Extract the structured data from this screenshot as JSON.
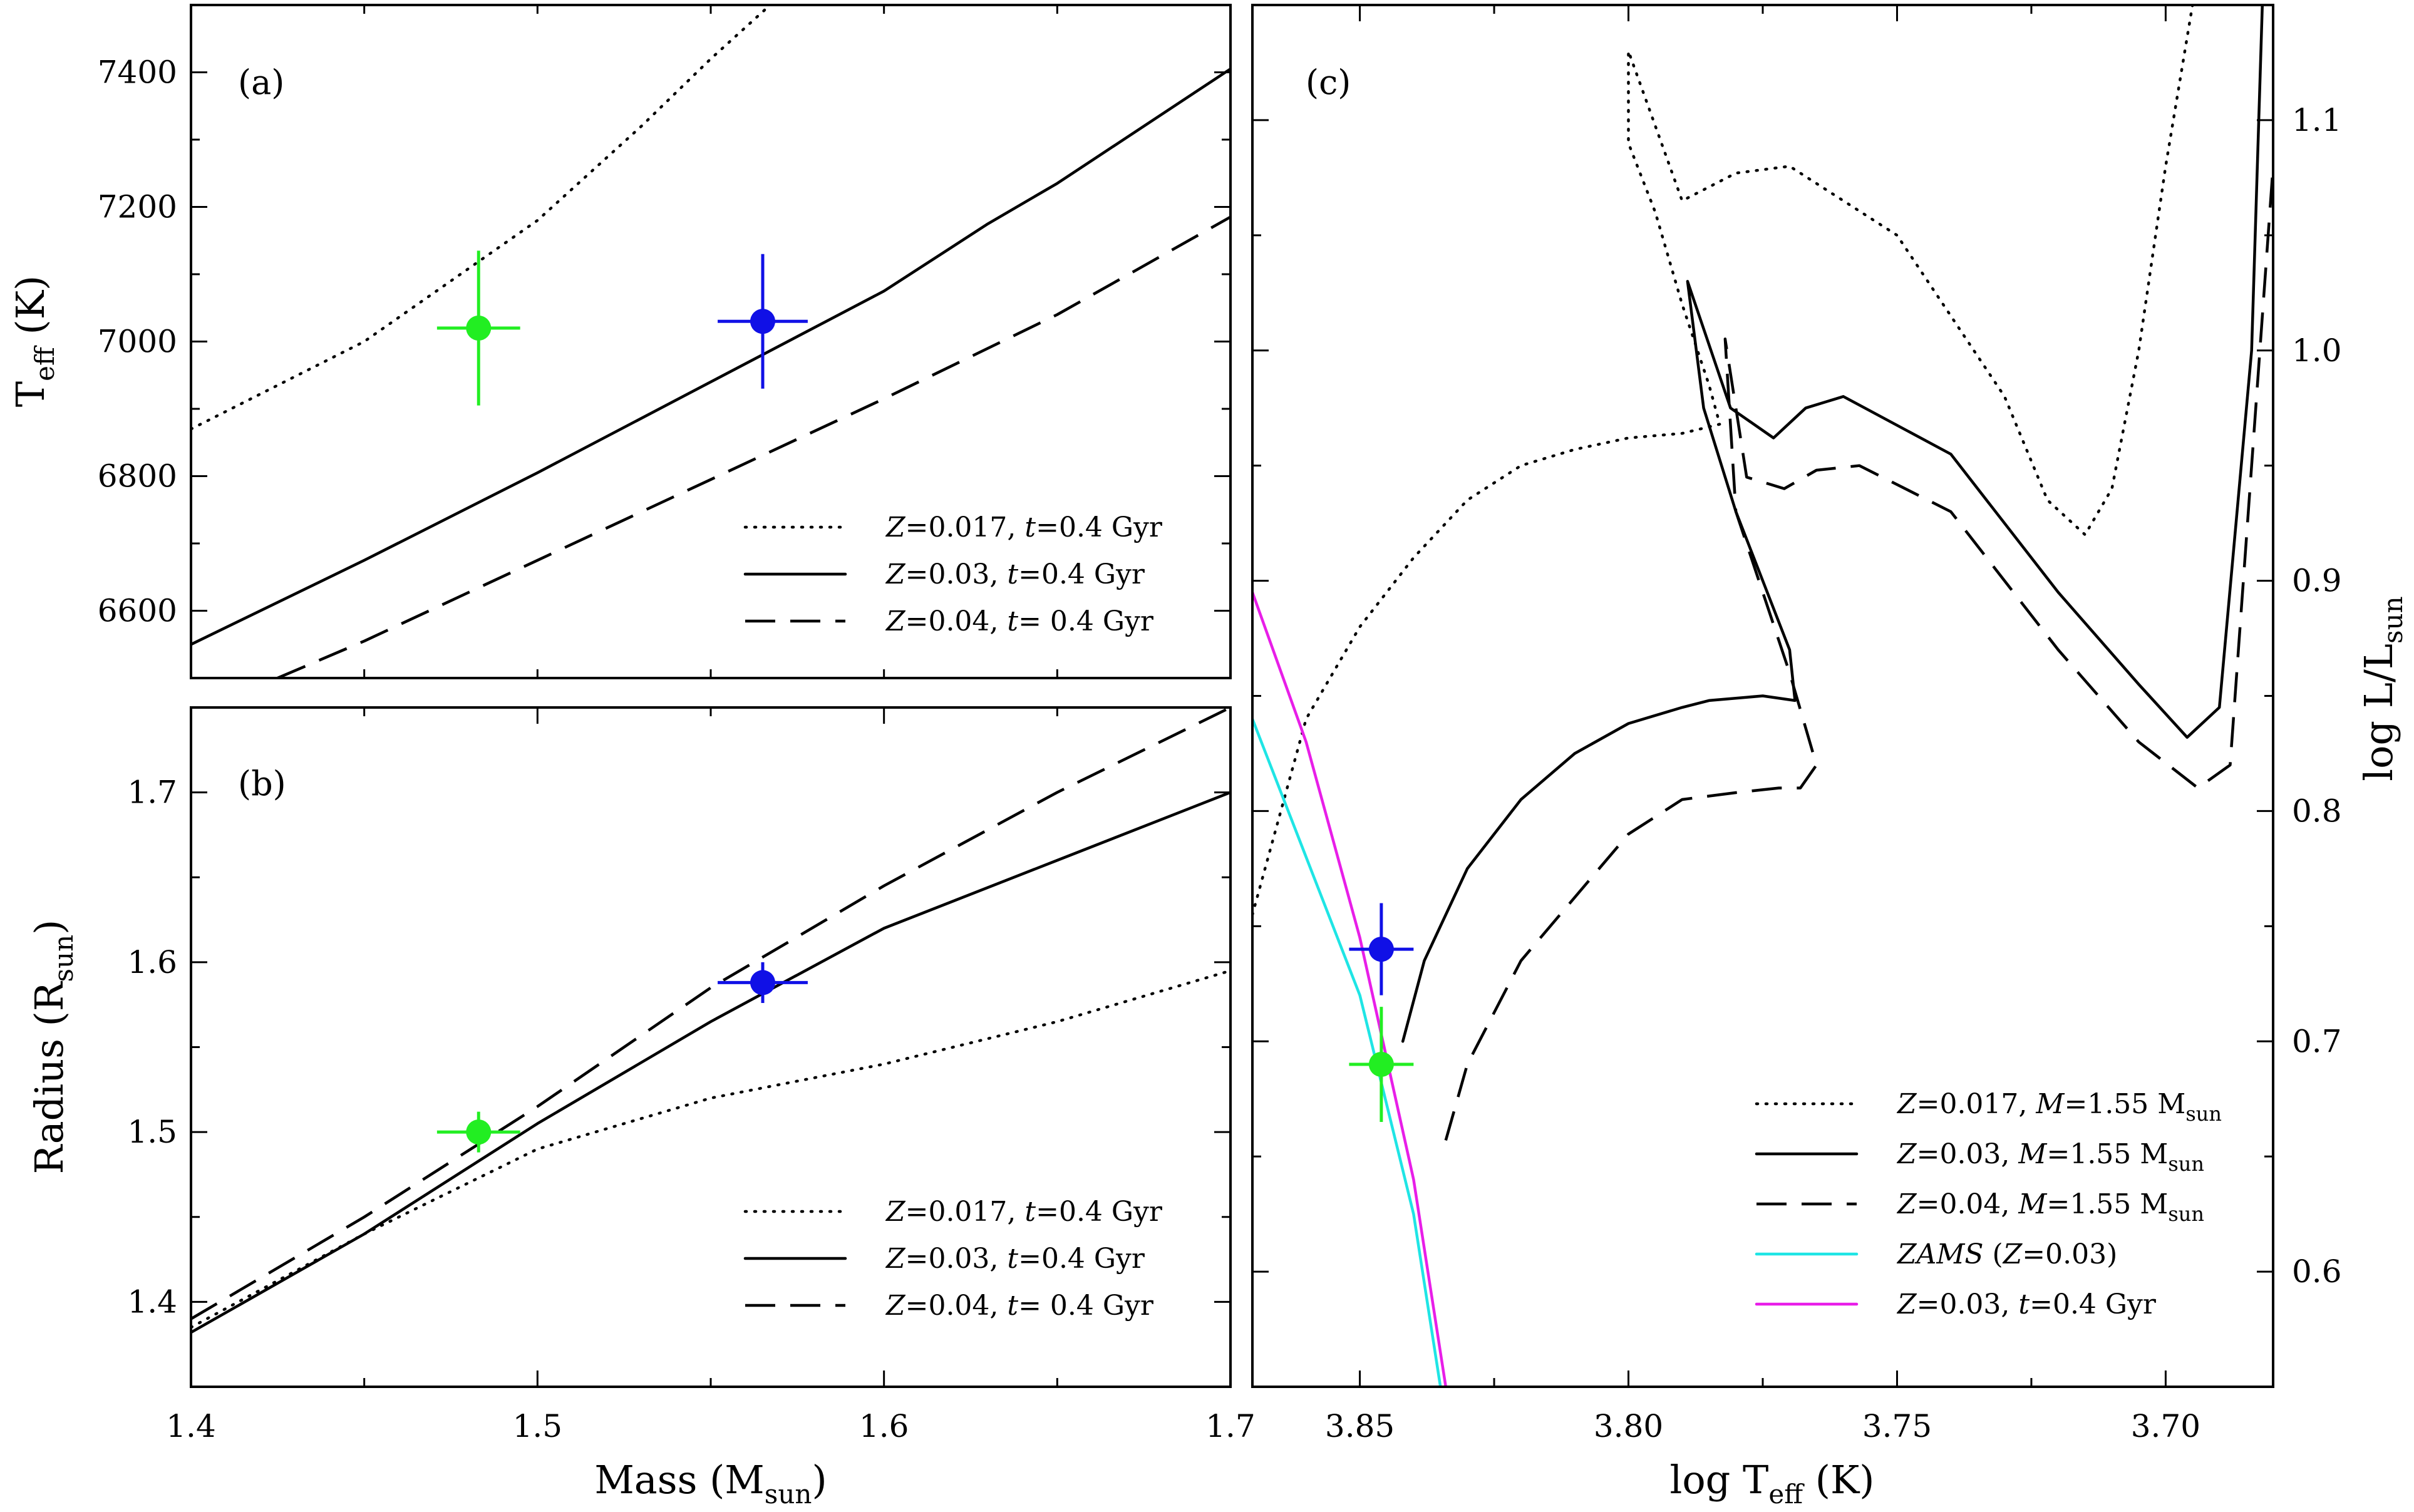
{
  "chart_data": [
    {
      "id": "a",
      "type": "line",
      "panel_label": "(a)",
      "ylabel": "T",
      "ylabel_sub": "eff",
      "ylabel_tail": " (K)",
      "xlim": [
        1.4,
        1.7
      ],
      "ylim": [
        6500,
        7500
      ],
      "yticks": [
        6600,
        6800,
        7000,
        7200,
        7400
      ],
      "yticklabels": [
        "6600",
        "6800",
        "7000",
        "7200",
        "7400"
      ],
      "series": [
        {
          "name": "Z=0.017, t=0.4 Gyr",
          "legend": [
            "Z",
            "=0.017, ",
            "t",
            "=0.4 Gyr"
          ],
          "style": "dotted",
          "color": "#000000",
          "x": [
            1.4,
            1.45,
            1.5,
            1.53,
            1.55,
            1.58
          ],
          "y": [
            6870,
            7000,
            7180,
            7320,
            7420,
            7560
          ]
        },
        {
          "name": "Z=0.03, t=0.4 Gyr",
          "legend": [
            "Z",
            "=0.03, ",
            "t",
            "=0.4 Gyr"
          ],
          "style": "solid",
          "color": "#000000",
          "x": [
            1.4,
            1.45,
            1.5,
            1.55,
            1.6,
            1.63,
            1.65,
            1.7
          ],
          "y": [
            6550,
            6675,
            6805,
            6940,
            7075,
            7175,
            7235,
            7405
          ]
        },
        {
          "name": "Z=0.04, t= 0.4 Gyr",
          "legend": [
            "Z",
            "=0.04, ",
            "t",
            "= 0.4 Gyr"
          ],
          "style": "dashed",
          "color": "#000000",
          "x": [
            1.425,
            1.45,
            1.5,
            1.55,
            1.6,
            1.65,
            1.7
          ],
          "y": [
            6500,
            6555,
            6675,
            6795,
            6915,
            7040,
            7185
          ]
        }
      ],
      "points": [
        {
          "name": "star-green",
          "color": "#22ee22",
          "x": 1.483,
          "y": 7020,
          "xerr": 0.012,
          "yerr": 115
        },
        {
          "name": "star-blue",
          "color": "#1010e6",
          "x": 1.565,
          "y": 7030,
          "xerr": 0.013,
          "yerr": 100
        }
      ]
    },
    {
      "id": "b",
      "type": "line",
      "panel_label": "(b)",
      "ylabel": "Radius (R",
      "ylabel_sub": "sun",
      "ylabel_tail": ")",
      "xlabel": "Mass (M",
      "xlabel_sub": "sun",
      "xlabel_tail": ")",
      "xlim": [
        1.4,
        1.7
      ],
      "ylim": [
        1.35,
        1.75
      ],
      "xticks": [
        1.4,
        1.5,
        1.6,
        1.7
      ],
      "xticklabels": [
        "1.4",
        "1.5",
        "1.6",
        "1.7"
      ],
      "yticks": [
        1.4,
        1.5,
        1.6,
        1.7
      ],
      "yticklabels": [
        "1.4",
        "1.5",
        "1.6",
        "1.7"
      ],
      "series": [
        {
          "name": "Z=0.017, t=0.4 Gyr",
          "legend": [
            "Z",
            "=0.017, ",
            "t",
            "=0.4 Gyr"
          ],
          "style": "dotted",
          "color": "#000000",
          "x": [
            1.4,
            1.45,
            1.5,
            1.55,
            1.6,
            1.65,
            1.7
          ],
          "y": [
            1.385,
            1.44,
            1.49,
            1.52,
            1.54,
            1.565,
            1.595
          ]
        },
        {
          "name": "Z=0.03, t=0.4 Gyr",
          "legend": [
            "Z",
            "=0.03, ",
            "t",
            "=0.4 Gyr"
          ],
          "style": "solid",
          "color": "#000000",
          "x": [
            1.4,
            1.45,
            1.5,
            1.55,
            1.6,
            1.65,
            1.7
          ],
          "y": [
            1.382,
            1.44,
            1.505,
            1.565,
            1.62,
            1.66,
            1.7
          ]
        },
        {
          "name": "Z=0.04, t= 0.4 Gyr",
          "legend": [
            "Z",
            "=0.04, ",
            "t",
            "= 0.4 Gyr"
          ],
          "style": "dashed",
          "color": "#000000",
          "x": [
            1.4,
            1.45,
            1.5,
            1.55,
            1.6,
            1.65,
            1.7
          ],
          "y": [
            1.39,
            1.45,
            1.515,
            1.585,
            1.645,
            1.7,
            1.75
          ]
        }
      ],
      "points": [
        {
          "name": "star-green",
          "color": "#22ee22",
          "x": 1.483,
          "y": 1.5,
          "xerr": 0.012,
          "yerr": 0.012
        },
        {
          "name": "star-blue",
          "color": "#1010e6",
          "x": 1.565,
          "y": 1.588,
          "xerr": 0.013,
          "yerr": 0.012
        }
      ]
    },
    {
      "id": "c",
      "type": "line",
      "panel_label": "(c)",
      "xlabel": "log T",
      "xlabel_sub": "eff",
      "xlabel_tail": " (K)",
      "ylabel": "log L/L",
      "ylabel_sub": "sun",
      "xlim": [
        3.87,
        3.68
      ],
      "ylim": [
        0.55,
        1.15
      ],
      "xticks": [
        3.85,
        3.8,
        3.75,
        3.7
      ],
      "xticklabels": [
        "3.85",
        "3.80",
        "3.75",
        "3.70"
      ],
      "yticks": [
        0.6,
        0.7,
        0.8,
        0.9,
        1.0,
        1.1
      ],
      "yticklabels": [
        "0.6",
        "0.7",
        "0.8",
        "0.9",
        "1.0",
        "1.1"
      ],
      "series": [
        {
          "name": "Z=0.017, M=1.55 Msun",
          "legend": [
            "Z",
            "=0.017, ",
            "M",
            "=1.55 M",
            "sun"
          ],
          "style": "dotted",
          "color": "#000000",
          "x": [
            3.87,
            3.86,
            3.85,
            3.84,
            3.83,
            3.82,
            3.81,
            3.8,
            3.79,
            3.783,
            3.785,
            3.79,
            3.795,
            3.8,
            3.8,
            3.79,
            3.78,
            3.77,
            3.75,
            3.73,
            3.722,
            3.715,
            3.71,
            3.705,
            3.7,
            3.695
          ],
          "y": [
            0.755,
            0.84,
            0.88,
            0.91,
            0.935,
            0.95,
            0.957,
            0.962,
            0.964,
            0.968,
            0.985,
            1.02,
            1.06,
            1.09,
            1.13,
            1.065,
            1.077,
            1.08,
            1.05,
            0.98,
            0.935,
            0.92,
            0.94,
            1.0,
            1.08,
            1.15
          ]
        },
        {
          "name": "Z=0.03, M=1.55 Msun",
          "legend": [
            "Z",
            "=0.03, ",
            "M",
            "=1.55 M",
            "sun"
          ],
          "style": "solid",
          "color": "#000000",
          "x": [
            3.842,
            3.838,
            3.83,
            3.82,
            3.81,
            3.8,
            3.79,
            3.785,
            3.775,
            3.769,
            3.77,
            3.78,
            3.786,
            3.789,
            3.781,
            3.773,
            3.767,
            3.76,
            3.74,
            3.72,
            3.705,
            3.696,
            3.69,
            3.684,
            3.682
          ],
          "y": [
            0.7,
            0.735,
            0.775,
            0.805,
            0.825,
            0.838,
            0.845,
            0.848,
            0.85,
            0.848,
            0.87,
            0.93,
            0.975,
            1.03,
            0.975,
            0.962,
            0.975,
            0.98,
            0.955,
            0.895,
            0.855,
            0.832,
            0.845,
            1.0,
            1.15
          ]
        },
        {
          "name": "Z=0.04, M=1.55 Msun",
          "legend": [
            "Z",
            "=0.04, ",
            "M",
            "=1.55 M",
            "sun"
          ],
          "style": "dashed",
          "color": "#000000",
          "x": [
            3.834,
            3.83,
            3.82,
            3.8,
            3.79,
            3.78,
            3.772,
            3.768,
            3.765,
            3.77,
            3.78,
            3.782,
            3.778,
            3.771,
            3.765,
            3.757,
            3.74,
            3.72,
            3.705,
            3.694,
            3.688,
            3.684,
            3.68
          ],
          "y": [
            0.657,
            0.69,
            0.735,
            0.79,
            0.805,
            0.808,
            0.81,
            0.81,
            0.82,
            0.86,
            0.93,
            1.005,
            0.945,
            0.94,
            0.948,
            0.95,
            0.93,
            0.87,
            0.83,
            0.81,
            0.82,
            0.95,
            1.08
          ]
        },
        {
          "name": "ZAMS (Z=0.03)",
          "legend": [
            "ZAMS",
            " (",
            "Z",
            "=0.03)"
          ],
          "style": "solid",
          "color": "#1fe5e5",
          "x": [
            3.87,
            3.86,
            3.85,
            3.84,
            3.835
          ],
          "y": [
            0.84,
            0.78,
            0.72,
            0.625,
            0.55
          ]
        },
        {
          "name": "Z=0.03, t=0.4 Gyr",
          "legend": [
            "Z",
            "=0.03, ",
            "t",
            "=0.4 Gyr"
          ],
          "style": "solid",
          "color": "#e81ee8",
          "x": [
            3.87,
            3.86,
            3.85,
            3.84,
            3.834
          ],
          "y": [
            0.895,
            0.83,
            0.745,
            0.64,
            0.55
          ]
        }
      ],
      "points": [
        {
          "name": "star-green",
          "color": "#22ee22",
          "x": 3.846,
          "y": 0.69,
          "xerr": 0.006,
          "yerr": 0.025
        },
        {
          "name": "star-blue",
          "color": "#1010e6",
          "x": 3.846,
          "y": 0.74,
          "xerr": 0.006,
          "yerr": 0.02
        }
      ]
    }
  ]
}
